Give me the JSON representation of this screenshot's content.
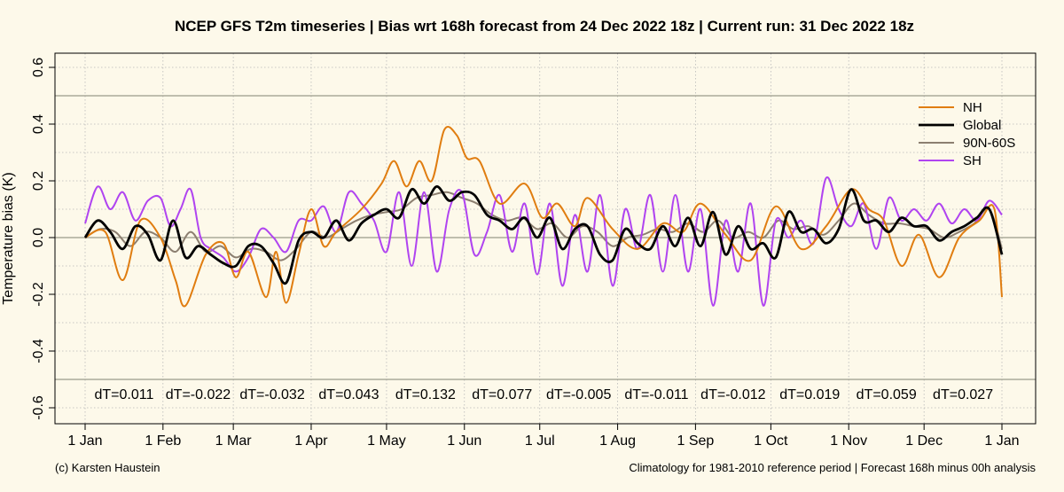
{
  "title": "NCEP GFS T2m timeseries | Bias wrt 168h forecast from 24 Dec 2022 18z | Current run: 31 Dec 2022 18z",
  "footer_left": "(c) Karsten Haustein",
  "footer_right": "Climatology for 1981-2010 reference period | Forecast 168h minus 00h analysis",
  "colors": {
    "background": "#fdf9ea",
    "NH": "#e07d10",
    "Global": "#000000",
    "90N-60S": "#8c7f70",
    "SH": "#b044f0",
    "grid": "#b8b8b8",
    "reference": "#9a9a8a"
  },
  "chart_data": {
    "type": "line",
    "title": "NCEP GFS T2m timeseries | Bias wrt 168h forecast from 24 Dec 2022 18z | Current run: 31 Dec 2022 18z",
    "xlabel": "",
    "ylabel": "Temperature bias (K)",
    "xlim": [
      0,
      370
    ],
    "ylim": [
      -0.66,
      0.64
    ],
    "grid": true,
    "legend_position": "top-right",
    "x_ticks": [
      {
        "label": "1 Jan",
        "day": 0
      },
      {
        "label": "1 Feb",
        "day": 31
      },
      {
        "label": "1 Mar",
        "day": 59
      },
      {
        "label": "1 Apr",
        "day": 90
      },
      {
        "label": "1 May",
        "day": 120
      },
      {
        "label": "1 Jun",
        "day": 151
      },
      {
        "label": "1 Jul",
        "day": 181
      },
      {
        "label": "1 Aug",
        "day": 212
      },
      {
        "label": "1 Sep",
        "day": 243
      },
      {
        "label": "1 Oct",
        "day": 273
      },
      {
        "label": "1 Nov",
        "day": 304
      },
      {
        "label": "1 Dec",
        "day": 334
      },
      {
        "label": "1 Jan",
        "day": 365
      }
    ],
    "y_ticks": [
      {
        "label": "-0.6",
        "value": -0.6
      },
      {
        "label": "-0.4",
        "value": -0.4
      },
      {
        "label": "-0.2",
        "value": -0.2
      },
      {
        "label": "0.0",
        "value": 0.0
      },
      {
        "label": "0.2",
        "value": 0.2
      },
      {
        "label": "0.4",
        "value": 0.4
      },
      {
        "label": "0.6",
        "value": 0.6
      }
    ],
    "reference_lines": [
      0.5,
      0.0,
      -0.5
    ],
    "monthly_dT": [
      "dT=0.011",
      "dT=-0.022",
      "dT=-0.032",
      "dT=0.043",
      "dT=0.132",
      "dT=0.077",
      "dT=-0.005",
      "dT=-0.011",
      "dT=-0.012",
      "dT=0.019",
      "dT=0.059",
      "dT=0.027"
    ],
    "series": [
      {
        "name": "NH",
        "x": [
          0,
          8,
          15,
          22,
          30,
          36,
          40,
          48,
          55,
          60,
          65,
          72,
          76,
          80,
          85,
          90,
          95,
          100,
          110,
          118,
          123,
          128,
          133,
          138,
          143,
          148,
          152,
          157,
          165,
          175,
          182,
          188,
          195,
          200,
          210,
          220,
          230,
          238,
          245,
          255,
          265,
          275,
          285,
          295,
          305,
          312,
          318,
          325,
          332,
          340,
          348,
          356,
          362,
          365
        ],
        "values": [
          0.0,
          0.02,
          -0.15,
          0.06,
          0.0,
          -0.15,
          -0.24,
          -0.06,
          -0.02,
          -0.14,
          -0.05,
          -0.21,
          -0.05,
          -0.23,
          -0.06,
          0.1,
          -0.03,
          0.02,
          0.1,
          0.19,
          0.27,
          0.18,
          0.27,
          0.2,
          0.38,
          0.36,
          0.28,
          0.27,
          0.12,
          0.19,
          0.07,
          0.12,
          0.04,
          0.14,
          0.03,
          -0.04,
          0.05,
          0.02,
          0.12,
          0.01,
          -0.08,
          0.11,
          -0.04,
          0.04,
          0.17,
          0.1,
          0.06,
          -0.1,
          0.01,
          -0.14,
          0.0,
          0.06,
          0.1,
          -0.21
        ]
      },
      {
        "name": "Global",
        "x": [
          0,
          5,
          10,
          15,
          20,
          25,
          30,
          35,
          40,
          45,
          50,
          55,
          60,
          65,
          70,
          75,
          80,
          85,
          90,
          95,
          100,
          105,
          110,
          115,
          120,
          125,
          130,
          135,
          140,
          145,
          150,
          155,
          160,
          165,
          170,
          175,
          180,
          185,
          190,
          195,
          200,
          205,
          210,
          215,
          220,
          225,
          230,
          235,
          240,
          245,
          250,
          255,
          260,
          265,
          270,
          275,
          280,
          285,
          290,
          295,
          300,
          305,
          310,
          315,
          320,
          325,
          330,
          335,
          340,
          345,
          350,
          355,
          360,
          365
        ],
        "values": [
          0.0,
          0.06,
          0.02,
          -0.04,
          0.04,
          0.01,
          -0.08,
          0.06,
          -0.07,
          -0.03,
          -0.06,
          -0.09,
          -0.1,
          -0.03,
          -0.03,
          -0.09,
          -0.16,
          -0.01,
          0.02,
          0.0,
          0.06,
          -0.01,
          0.05,
          0.08,
          0.1,
          0.07,
          0.17,
          0.12,
          0.18,
          0.13,
          0.16,
          0.15,
          0.08,
          0.06,
          0.03,
          0.07,
          0.0,
          0.07,
          -0.04,
          0.03,
          0.04,
          -0.06,
          -0.08,
          0.03,
          -0.02,
          -0.04,
          0.04,
          -0.03,
          0.07,
          -0.03,
          0.09,
          -0.06,
          0.04,
          -0.04,
          -0.02,
          -0.07,
          0.09,
          0.02,
          0.03,
          -0.02,
          0.03,
          0.17,
          0.06,
          0.06,
          0.02,
          0.07,
          0.04,
          0.04,
          -0.01,
          0.02,
          0.04,
          0.07,
          0.1,
          -0.06
        ]
      },
      {
        "name": "90N-60S",
        "x": [
          0,
          6,
          12,
          18,
          24,
          30,
          36,
          42,
          48,
          54,
          60,
          66,
          72,
          78,
          84,
          90,
          96,
          102,
          108,
          114,
          120,
          126,
          132,
          138,
          144,
          150,
          156,
          162,
          168,
          174,
          180,
          186,
          192,
          198,
          204,
          210,
          216,
          222,
          228,
          234,
          240,
          246,
          252,
          258,
          264,
          270,
          276,
          282,
          288,
          294,
          300,
          306,
          312,
          318,
          324,
          330,
          336,
          342,
          348,
          354,
          360,
          365
        ],
        "values": [
          0.0,
          0.03,
          0.02,
          -0.03,
          0.02,
          0.0,
          -0.05,
          0.02,
          -0.05,
          -0.03,
          -0.07,
          -0.04,
          -0.05,
          -0.08,
          -0.04,
          0.02,
          0.0,
          0.03,
          0.06,
          0.08,
          0.09,
          0.1,
          0.14,
          0.15,
          0.16,
          0.14,
          0.12,
          0.08,
          0.06,
          0.07,
          0.03,
          0.05,
          0.0,
          0.04,
          0.02,
          -0.03,
          0.0,
          0.01,
          0.03,
          0.02,
          0.05,
          0.02,
          0.06,
          0.0,
          0.02,
          0.0,
          0.06,
          0.03,
          0.04,
          0.01,
          0.06,
          0.12,
          0.08,
          0.05,
          0.05,
          0.04,
          0.03,
          0.0,
          0.02,
          0.05,
          0.1,
          -0.04
        ]
      },
      {
        "name": "SH",
        "x": [
          0,
          5,
          10,
          15,
          20,
          25,
          30,
          34,
          38,
          42,
          46,
          50,
          55,
          60,
          65,
          70,
          75,
          80,
          85,
          90,
          95,
          100,
          105,
          110,
          115,
          120,
          125,
          130,
          135,
          140,
          145,
          150,
          155,
          160,
          165,
          170,
          175,
          180,
          185,
          190,
          195,
          200,
          205,
          210,
          215,
          220,
          225,
          230,
          235,
          240,
          245,
          250,
          255,
          260,
          265,
          270,
          275,
          280,
          285,
          290,
          295,
          300,
          305,
          310,
          315,
          320,
          325,
          330,
          335,
          340,
          345,
          350,
          355,
          360,
          365
        ],
        "values": [
          0.05,
          0.18,
          0.1,
          0.16,
          0.06,
          0.13,
          0.14,
          0.04,
          0.1,
          0.17,
          0.0,
          -0.04,
          -0.07,
          -0.12,
          -0.07,
          0.03,
          0.0,
          -0.05,
          0.06,
          0.06,
          0.11,
          0.02,
          0.16,
          0.12,
          0.06,
          -0.05,
          0.16,
          -0.1,
          0.16,
          -0.12,
          0.1,
          0.16,
          -0.06,
          0.02,
          0.15,
          -0.05,
          0.12,
          -0.13,
          0.12,
          -0.17,
          0.08,
          -0.12,
          0.15,
          -0.17,
          0.1,
          -0.04,
          0.15,
          -0.12,
          0.15,
          -0.12,
          0.1,
          -0.24,
          0.06,
          -0.12,
          0.12,
          -0.24,
          0.06,
          0.0,
          0.06,
          -0.02,
          0.21,
          0.1,
          0.04,
          0.12,
          -0.04,
          0.14,
          0.06,
          0.1,
          0.06,
          0.12,
          0.05,
          0.1,
          0.06,
          0.13,
          0.08
        ]
      }
    ]
  }
}
